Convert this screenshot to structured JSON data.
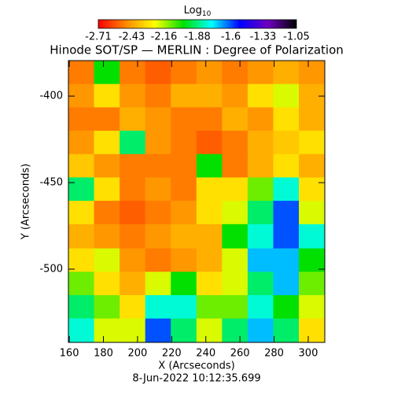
{
  "chart_data": {
    "type": "heatmap",
    "title": "Hinode SOT/SP — MERLIN : Degree of Polarization",
    "subtitle": "8-Jun-2022 10:12:35.699",
    "colorbar_label": "Log",
    "colorbar_label_sub": "10",
    "xlabel": "X (Arcseconds)",
    "ylabel": "Y (Arcseconds)",
    "xlim": [
      159.5,
      309.7
    ],
    "ylim": [
      -542.3,
      -379.5
    ],
    "xticks": [
      160,
      180,
      200,
      220,
      240,
      260,
      280,
      300
    ],
    "yticks": [
      -400,
      -450,
      -500
    ],
    "clim": [
      -2.71,
      -1.05
    ],
    "cticks": [
      -2.71,
      -2.43,
      -2.16,
      -1.88,
      -1.6,
      -1.33,
      -1.05
    ],
    "colorscale": [
      "#ff0000",
      "#ff8c00",
      "#ffff00",
      "#00e000",
      "#00ffff",
      "#0000ff",
      "#7000c0",
      "#000000"
    ],
    "x": [
      167,
      182,
      197,
      212,
      227,
      242,
      257,
      272,
      287,
      302
    ],
    "y": [
      -386,
      -400,
      -413,
      -427,
      -440,
      -454,
      -467,
      -481,
      -495,
      -508,
      -522,
      -535
    ],
    "z": [
      [
        -2.5,
        -2.0,
        -2.5,
        -2.55,
        -2.5,
        -2.45,
        -2.5,
        -2.45,
        -2.4,
        -2.45
      ],
      [
        -2.45,
        -2.3,
        -2.45,
        -2.5,
        -2.4,
        -2.4,
        -2.45,
        -2.3,
        -2.2,
        -2.4
      ],
      [
        -2.5,
        -2.5,
        -2.4,
        -2.45,
        -2.5,
        -2.5,
        -2.4,
        -2.45,
        -2.3,
        -2.4
      ],
      [
        -2.45,
        -2.3,
        -1.9,
        -2.45,
        -2.5,
        -2.55,
        -2.5,
        -2.4,
        -2.35,
        -2.3
      ],
      [
        -2.35,
        -2.45,
        -2.5,
        -2.5,
        -2.5,
        -2.0,
        -2.5,
        -2.4,
        -2.3,
        -2.4
      ],
      [
        -1.9,
        -2.3,
        -2.5,
        -2.45,
        -2.5,
        -2.3,
        -2.3,
        -2.1,
        -1.8,
        -2.3
      ],
      [
        -2.3,
        -2.5,
        -2.55,
        -2.5,
        -2.45,
        -2.3,
        -2.2,
        -1.9,
        -1.6,
        -2.2
      ],
      [
        -2.4,
        -2.45,
        -2.5,
        -2.45,
        -2.4,
        -2.4,
        -2.0,
        -1.8,
        -1.6,
        -1.8
      ],
      [
        -2.3,
        -2.2,
        -2.45,
        -2.5,
        -2.45,
        -2.4,
        -2.2,
        -1.7,
        -1.7,
        -2.0
      ],
      [
        -2.1,
        -2.3,
        -2.4,
        -2.2,
        -2.0,
        -2.3,
        -2.2,
        -1.9,
        -1.7,
        -2.1
      ],
      [
        -1.9,
        -2.1,
        -2.3,
        -1.8,
        -1.8,
        -2.1,
        -2.1,
        -1.8,
        -2.0,
        -2.2
      ],
      [
        -1.8,
        -2.2,
        -2.2,
        -1.6,
        -1.9,
        -2.2,
        -1.9,
        -1.7,
        -1.9,
        -2.3
      ]
    ]
  }
}
